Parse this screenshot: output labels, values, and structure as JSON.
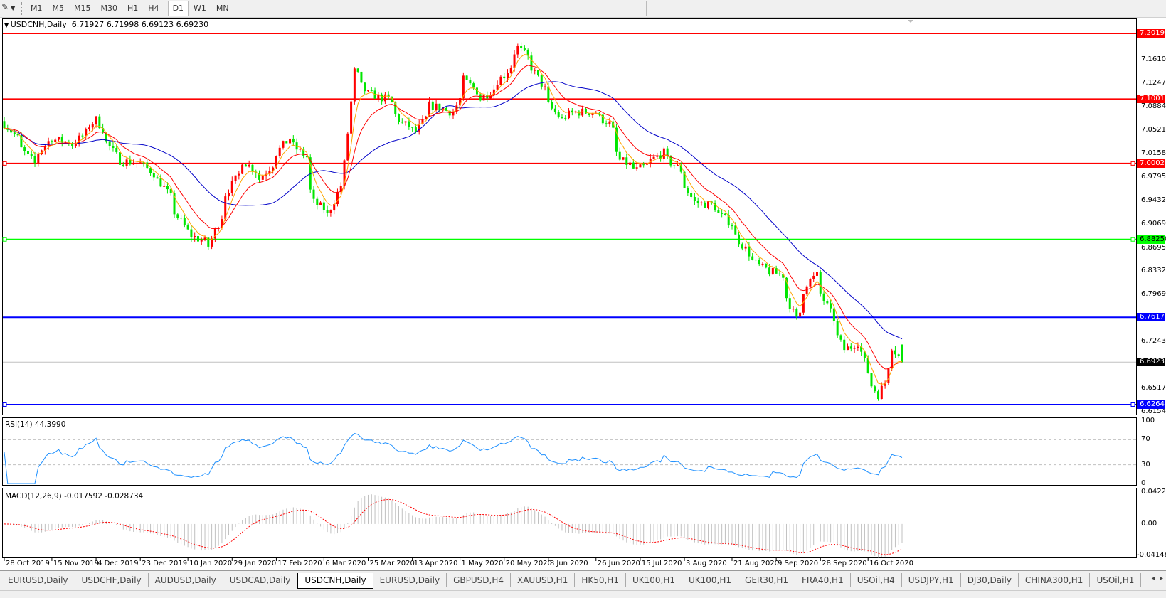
{
  "toolbar": {
    "tools_icon": "line-tools-icon",
    "timeframes": [
      "M1",
      "M5",
      "M15",
      "M30",
      "H1",
      "H4",
      "D1",
      "W1",
      "MN"
    ],
    "active_timeframe": "D1"
  },
  "chart": {
    "symbol_label": "USDCNH,Daily",
    "ohlc_label": "6.71927 6.71998 6.69123 6.69230",
    "rsi_label": "RSI(14) 44.3990",
    "macd_label": "MACD(12,26,9) -0.017592 -0.028734"
  },
  "colors": {
    "bull_candle": "#ff0000",
    "bear_candle": "#00e600",
    "ma_fast": "#ffa500",
    "ma_mid": "#ff0000",
    "ma_slow": "#0000c8",
    "rsi_line": "#1e90ff",
    "macd_hist": "#c0c0c0",
    "macd_signal": "#ff0000",
    "level_red": "#ff0000",
    "level_green": "#00ff00",
    "level_blue": "#0000ff",
    "current_price": "#000000"
  },
  "chart_data": {
    "type": "candlestick",
    "symbol": "USDCNH",
    "timeframe": "Daily",
    "last_bar": {
      "open": 6.71927,
      "high": 6.71998,
      "low": 6.69123,
      "close": 6.6923
    },
    "price_axis": {
      "ticks": [
        "7.16100",
        "7.12470",
        "7.08840",
        "7.05210",
        "7.01580",
        "6.97950",
        "6.94320",
        "6.90690",
        "6.86950",
        "6.83320",
        "6.79690",
        "6.72430",
        "6.65170",
        "6.61540"
      ],
      "ylim": [
        6.6154,
        7.2165
      ]
    },
    "date_ticks": [
      "28 Oct 2019",
      "15 Nov 2019",
      "4 Dec 2019",
      "23 Dec 2019",
      "10 Jan 2020",
      "29 Jan 2020",
      "17 Feb 2020",
      "6 Mar 2020",
      "25 Mar 2020",
      "13 Apr 2020",
      "1 May 2020",
      "20 May 2020",
      "8 Jun 2020",
      "26 Jun 2020",
      "15 Jul 2020",
      "3 Aug 2020",
      "21 Aug 2020",
      "9 Sep 2020",
      "28 Sep 2020",
      "16 Oct 2020"
    ],
    "horizontal_levels": [
      {
        "price": "7.20193",
        "color": "red"
      },
      {
        "price": "7.10011",
        "color": "red"
      },
      {
        "price": "7.00029",
        "color": "red"
      },
      {
        "price": "6.88250",
        "color": "green"
      },
      {
        "price": "6.76171",
        "color": "blue"
      },
      {
        "price": "6.62643",
        "color": "blue"
      }
    ],
    "current_price": "6.69230",
    "approx_close_path": [
      [
        "2019-10-28",
        7.062
      ],
      [
        "2019-11-08",
        7.0
      ],
      [
        "2019-11-15",
        7.04
      ],
      [
        "2019-11-25",
        7.03
      ],
      [
        "2019-12-04",
        7.068
      ],
      [
        "2019-12-13",
        7.005
      ],
      [
        "2019-12-23",
        7.0
      ],
      [
        "2019-12-31",
        6.97
      ],
      [
        "2020-01-10",
        6.895
      ],
      [
        "2020-01-20",
        6.872
      ],
      [
        "2020-01-27",
        6.953
      ],
      [
        "2020-02-03",
        7.005
      ],
      [
        "2020-02-10",
        6.976
      ],
      [
        "2020-02-21",
        7.04
      ],
      [
        "2020-02-28",
        7.01
      ],
      [
        "2020-03-03",
        6.94
      ],
      [
        "2020-03-09",
        6.92
      ],
      [
        "2020-03-16",
        7.0
      ],
      [
        "2020-03-19",
        7.143
      ],
      [
        "2020-03-25",
        7.108
      ],
      [
        "2020-04-02",
        7.1
      ],
      [
        "2020-04-08",
        7.062
      ],
      [
        "2020-04-14",
        7.05
      ],
      [
        "2020-04-20",
        7.09
      ],
      [
        "2020-04-29",
        7.08
      ],
      [
        "2020-05-04",
        7.13
      ],
      [
        "2020-05-11",
        7.1
      ],
      [
        "2020-05-20",
        7.137
      ],
      [
        "2020-05-26",
        7.18
      ],
      [
        "2020-06-01",
        7.149
      ],
      [
        "2020-06-08",
        7.09
      ],
      [
        "2020-06-12",
        7.068
      ],
      [
        "2020-06-18",
        7.08
      ],
      [
        "2020-06-26",
        7.08
      ],
      [
        "2020-07-02",
        7.062
      ],
      [
        "2020-07-07",
        7.005
      ],
      [
        "2020-07-14",
        6.99
      ],
      [
        "2020-07-20",
        7.005
      ],
      [
        "2020-07-24",
        7.017
      ],
      [
        "2020-07-31",
        6.99
      ],
      [
        "2020-08-06",
        6.94
      ],
      [
        "2020-08-13",
        6.936
      ],
      [
        "2020-08-21",
        6.907
      ],
      [
        "2020-08-28",
        6.861
      ],
      [
        "2020-09-03",
        6.838
      ],
      [
        "2020-09-11",
        6.827
      ],
      [
        "2020-09-17",
        6.758
      ],
      [
        "2020-09-22",
        6.815
      ],
      [
        "2020-09-25",
        6.827
      ],
      [
        "2020-10-01",
        6.769
      ],
      [
        "2020-10-07",
        6.712
      ],
      [
        "2020-10-13",
        6.723
      ],
      [
        "2020-10-16",
        6.677
      ],
      [
        "2020-10-21",
        6.642
      ],
      [
        "2020-10-26",
        6.688
      ],
      [
        "2020-10-27",
        6.717
      ],
      [
        "2020-10-30",
        6.6923
      ]
    ],
    "moving_averages": [
      "fast (orange)",
      "medium (red)",
      "slow (blue)"
    ],
    "rsi": {
      "period": 14,
      "value": "44.3990",
      "axis_ticks": [
        "100",
        "70",
        "30",
        "0"
      ],
      "levels": [
        70,
        30
      ]
    },
    "macd": {
      "params": "12,26,9",
      "main": "-0.017592",
      "signal": "-0.028734",
      "axis_ticks": [
        "0.042275",
        "0.00",
        "-0.04148"
      ]
    }
  },
  "tabs": [
    {
      "label": "EURUSD,Daily"
    },
    {
      "label": "USDCHF,Daily"
    },
    {
      "label": "AUDUSD,Daily"
    },
    {
      "label": "USDCAD,Daily"
    },
    {
      "label": "USDCNH,Daily",
      "active": true
    },
    {
      "label": "EURUSD,Daily"
    },
    {
      "label": "GBPUSD,H4"
    },
    {
      "label": "XAUUSD,H1"
    },
    {
      "label": "HK50,H1"
    },
    {
      "label": "UK100,H1"
    },
    {
      "label": "UK100,H1"
    },
    {
      "label": "GER30,H1"
    },
    {
      "label": "FRA40,H1"
    },
    {
      "label": "USOil,H4"
    },
    {
      "label": "USDJPY,H1"
    },
    {
      "label": "DJ30,Daily"
    },
    {
      "label": "CHINA300,H1"
    },
    {
      "label": "USOil,H1"
    }
  ],
  "tab_arrows": {
    "left": "◂",
    "right": "▸"
  }
}
